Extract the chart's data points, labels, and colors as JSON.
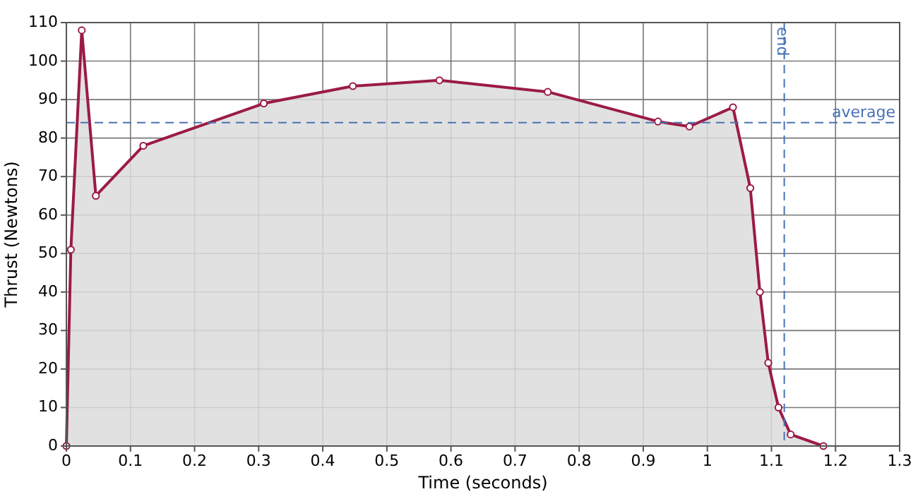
{
  "chart_data": {
    "type": "area",
    "xlabel": "Time (seconds)",
    "ylabel": "Thrust (Newtons)",
    "x": [
      0,
      0.007,
      0.024,
      0.046,
      0.12,
      0.308,
      0.447,
      0.582,
      0.751,
      0.923,
      0.972,
      1.04,
      1.067,
      1.082,
      1.095,
      1.111,
      1.13,
      1.181
    ],
    "series": [
      {
        "color": "#9b1b45",
        "values": [
          0,
          51,
          108,
          65,
          78,
          89,
          93.5,
          95,
          92,
          84.3,
          83,
          88,
          67,
          40,
          21.6,
          10,
          3,
          0
        ]
      }
    ],
    "xlim": [
      0,
      1.3
    ],
    "xticks": [
      0,
      0.1,
      0.2,
      0.3,
      0.4,
      0.5,
      0.6,
      0.7,
      0.8,
      0.9,
      1,
      1.1,
      1.2,
      1.3
    ],
    "ylim": [
      0,
      110
    ],
    "yticks": [
      0,
      10,
      20,
      30,
      40,
      50,
      60,
      70,
      80,
      90,
      100,
      110
    ],
    "grid": true,
    "marker": "circle",
    "line_style": "solid",
    "ref_lines": [
      {
        "axis": "y",
        "value": 84,
        "label": "average",
        "color": "#4a72b8",
        "line_style": "dashed"
      },
      {
        "axis": "x",
        "value": 1.12,
        "label": "end",
        "color": "#4a72b8",
        "line_style": "dashed"
      }
    ]
  }
}
